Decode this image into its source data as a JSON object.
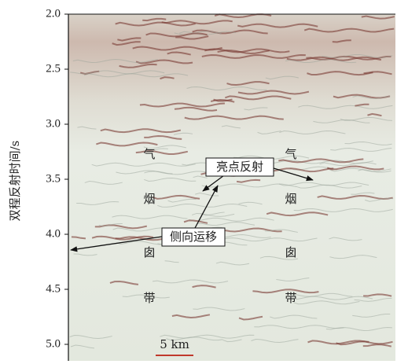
{
  "chart_data": {
    "type": "seismic-section",
    "y_label": "双程反射时间/s",
    "ylim": [
      2.0,
      5.15
    ],
    "yticks": [
      {
        "value": 2.0,
        "label": "2.0"
      },
      {
        "value": 2.5,
        "label": "2.5"
      },
      {
        "value": 3.0,
        "label": "3.0"
      },
      {
        "value": 3.5,
        "label": "3.5"
      },
      {
        "value": 4.0,
        "label": "4.0"
      },
      {
        "value": 4.5,
        "label": "4.5"
      },
      {
        "value": 5.0,
        "label": "5.0"
      }
    ],
    "annotations": [
      "亮点反射",
      "侧向运移"
    ],
    "chimney_labels": [
      [
        "气",
        "烟",
        "囱",
        "带"
      ],
      [
        "气",
        "烟",
        "囱",
        "带"
      ]
    ],
    "scale_bar": "5 km",
    "scale_bar_color": "#c0392b"
  }
}
